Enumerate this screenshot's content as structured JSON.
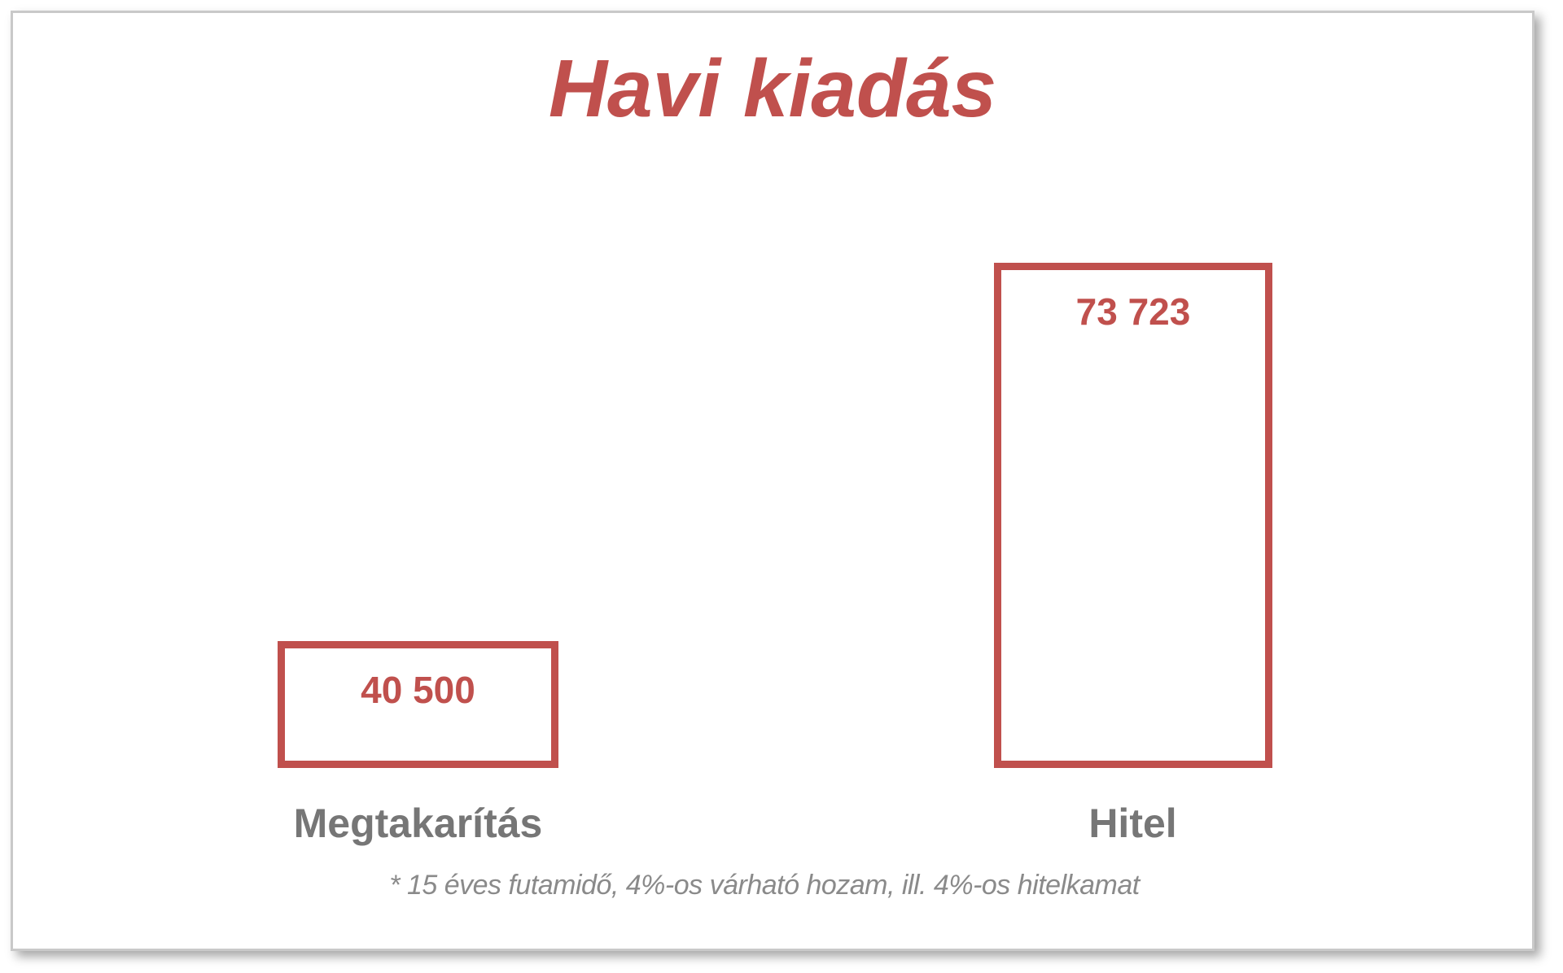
{
  "page": {
    "title": "Havi kiadás",
    "footnote": "* 15 éves futamidő, 4%-os várható hozam, ill. 4%-os hitelkamat"
  },
  "colors": {
    "accent_red": "#c0504d",
    "category_label_gray": "#767676",
    "footnote_gray": "#8a8a8a",
    "slide_border_gray": "#c9c9c9",
    "background": "#ffffff"
  },
  "chart_data": {
    "type": "bar",
    "title": "Havi kiadás",
    "categories": [
      "Megtakarítás",
      "Hitel"
    ],
    "values": [
      40500,
      73723
    ],
    "value_labels": [
      "40 500",
      "73 723"
    ],
    "footnote": "* 15 éves futamidő, 4%-os várható hozam, ill. 4%-os hitelkamat",
    "bar_style": "outlined-white-fill-red-border",
    "value_label_position": "inside-top",
    "legend": false,
    "axes_visible": false,
    "gridlines": false,
    "xlabel": "",
    "ylabel": ""
  }
}
